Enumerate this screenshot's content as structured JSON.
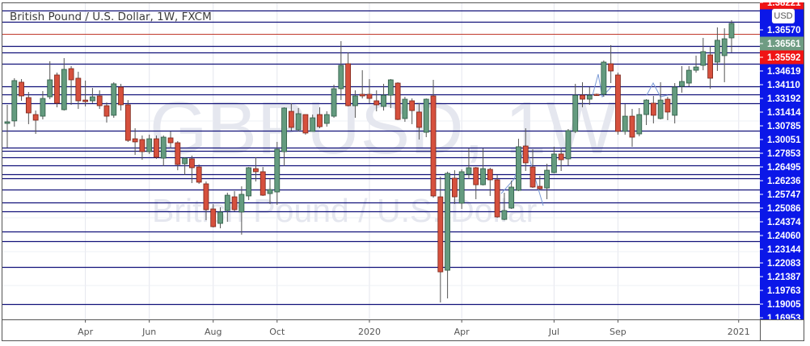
{
  "header": {
    "title": "British Pound / U.S. Dollar, 1W, FXCM",
    "currency_badge": "USD"
  },
  "watermark": {
    "symbol": "GBPUSD, 1W",
    "description": "British Pound / U.S. Dollar"
  },
  "colors": {
    "up": "#649b7f",
    "up_border": "#2e5b44",
    "down": "#d6503d",
    "down_border": "#7a2418",
    "level_line": "#12127a",
    "highlight_line": "#c0392b",
    "axis_bg": "#0b17e8",
    "label_red": "#f01414",
    "label_green": "#6f9c83",
    "grid": "#e4e6ee",
    "watermark": "#e5e7ef",
    "drawing": "#7a9ad6"
  },
  "chart_data": {
    "type": "candlestick",
    "title": "British Pound / U.S. Dollar, 1W, FXCM",
    "interval": "1W",
    "x_start": "2019-01-14",
    "ylim": [
      1.1396,
      1.3831
    ],
    "grid": true,
    "x_ticks": [
      {
        "label": "Apr",
        "date": "2019-04-01"
      },
      {
        "label": "Jun",
        "date": "2019-06-03"
      },
      {
        "label": "Aug",
        "date": "2019-08-05"
      },
      {
        "label": "Oct",
        "date": "2019-10-07"
      },
      {
        "label": "2020",
        "date": "2020-01-06"
      },
      {
        "label": "Apr",
        "date": "2020-04-06"
      },
      {
        "label": "Jul",
        "date": "2020-07-06"
      },
      {
        "label": "Sep",
        "date": "2020-09-07"
      },
      {
        "label": "2021",
        "date": "2021-01-04"
      }
    ],
    "price_labels": [
      {
        "value": "1.38221",
        "style": "red"
      },
      {
        "value": "1.36570",
        "style": "axis"
      },
      {
        "value": "1.36561",
        "style": "green"
      },
      {
        "value": "1.35592",
        "style": "red"
      },
      {
        "value": "1.34619",
        "style": "axis"
      },
      {
        "value": "1.34110",
        "style": "axis"
      },
      {
        "value": "1.33192",
        "style": "axis"
      },
      {
        "value": "1.31414",
        "style": "axis"
      },
      {
        "value": "1.30785",
        "style": "axis"
      },
      {
        "value": "1.30051",
        "style": "axis"
      },
      {
        "value": "1.27853",
        "style": "axis"
      },
      {
        "value": "1.26495",
        "style": "axis"
      },
      {
        "value": "1.26236",
        "style": "axis"
      },
      {
        "value": "1.25747",
        "style": "axis"
      },
      {
        "value": "1.25086",
        "style": "axis"
      },
      {
        "value": "1.24374",
        "style": "axis"
      },
      {
        "value": "1.24060",
        "style": "axis"
      },
      {
        "value": "1.23144",
        "style": "axis"
      },
      {
        "value": "1.22083",
        "style": "axis"
      },
      {
        "value": "1.21387",
        "style": "axis"
      },
      {
        "value": "1.19763",
        "style": "axis"
      },
      {
        "value": "1.19005",
        "style": "axis"
      },
      {
        "value": "1.16953",
        "style": "axis"
      }
    ],
    "levels": [
      1.3748,
      1.3657,
      1.35592,
      1.34619,
      1.3411,
      1.33192,
      1.31414,
      1.30785,
      1.30051,
      1.27853,
      1.26495,
      1.26236,
      1.25747,
      1.25086,
      1.24374,
      1.2406,
      1.23144,
      1.22083,
      1.21387,
      1.19763,
      1.19005,
      1.16953,
      1.1396
    ],
    "highlight_level": 1.35592,
    "ohlc": [
      [
        1.2843,
        1.2992,
        1.2649,
        1.2856
      ],
      [
        1.2863,
        1.3205,
        1.2817,
        1.3186
      ],
      [
        1.3173,
        1.3198,
        1.3024,
        1.3063
      ],
      [
        1.305,
        1.3095,
        1.2837,
        1.2927
      ],
      [
        1.2914,
        1.2946,
        1.2759,
        1.2869
      ],
      [
        1.2901,
        1.3102,
        1.2875,
        1.3043
      ],
      [
        1.3056,
        1.3341,
        1.3037,
        1.3192
      ],
      [
        1.3231,
        1.325,
        1.2972,
        1.3005
      ],
      [
        1.2953,
        1.3366,
        1.2946,
        1.3276
      ],
      [
        1.3282,
        1.3302,
        1.2992,
        1.3192
      ],
      [
        1.3205,
        1.3257,
        1.2959,
        1.3024
      ],
      [
        1.303,
        1.3186,
        1.2979,
        1.3018
      ],
      [
        1.3024,
        1.3127,
        1.3005,
        1.3056
      ],
      [
        1.3063,
        1.3108,
        1.2959,
        1.2985
      ],
      [
        1.2985,
        1.3011,
        1.285,
        1.2901
      ],
      [
        1.2908,
        1.3173,
        1.2888,
        1.316
      ],
      [
        1.3134,
        1.316,
        1.2946,
        1.2992
      ],
      [
        1.2992,
        1.303,
        1.2695,
        1.2707
      ],
      [
        1.272,
        1.2804,
        1.2591,
        1.2695
      ],
      [
        1.2714,
        1.2746,
        1.2552,
        1.2617
      ],
      [
        1.2617,
        1.2753,
        1.2598,
        1.272
      ],
      [
        1.272,
        1.2746,
        1.2559,
        1.2572
      ],
      [
        1.2565,
        1.2746,
        1.2501,
        1.2733
      ],
      [
        1.2727,
        1.2779,
        1.2643,
        1.2688
      ],
      [
        1.2688,
        1.2701,
        1.2468,
        1.2514
      ],
      [
        1.252,
        1.2572,
        1.243,
        1.2565
      ],
      [
        1.2559,
        1.2585,
        1.2365,
        1.2488
      ],
      [
        1.2494,
        1.2514,
        1.2359,
        1.2372
      ],
      [
        1.2359,
        1.2378,
        1.2068,
        1.2152
      ],
      [
        1.2158,
        1.2197,
        1.201,
        1.2016
      ],
      [
        1.2042,
        1.2171,
        1.2003,
        1.2133
      ],
      [
        1.2145,
        1.2288,
        1.2055,
        1.2268
      ],
      [
        1.2255,
        1.2301,
        1.2139,
        1.2152
      ],
      [
        1.2133,
        1.2339,
        1.1952,
        1.2275
      ],
      [
        1.2262,
        1.2494,
        1.2229,
        1.2488
      ],
      [
        1.2481,
        1.2572,
        1.2378,
        1.2456
      ],
      [
        1.2456,
        1.2494,
        1.2262,
        1.2268
      ],
      [
        1.2281,
        1.2397,
        1.2197,
        1.2313
      ],
      [
        1.2294,
        1.2695,
        1.2191,
        1.2636
      ],
      [
        1.2617,
        1.2972,
        1.2501,
        1.2966
      ],
      [
        1.294,
        1.3005,
        1.2785,
        1.2811
      ],
      [
        1.2792,
        1.2966,
        1.2779,
        1.2921
      ],
      [
        1.2914,
        1.2914,
        1.2753,
        1.2766
      ],
      [
        1.2779,
        1.2914,
        1.2779,
        1.2888
      ],
      [
        1.2914,
        1.2972,
        1.2804,
        1.2817
      ],
      [
        1.2843,
        1.294,
        1.2817,
        1.2914
      ],
      [
        1.2901,
        1.3153,
        1.2888,
        1.3121
      ],
      [
        1.3121,
        1.3502,
        1.303,
        1.3308
      ],
      [
        1.3321,
        1.3412,
        1.2979,
        1.2985
      ],
      [
        1.2985,
        1.3108,
        1.2888,
        1.3063
      ],
      [
        1.3076,
        1.3269,
        1.3043,
        1.3063
      ],
      [
        1.3076,
        1.3198,
        1.3005,
        1.3043
      ],
      [
        1.3024,
        1.3108,
        1.294,
        1.2992
      ],
      [
        1.2979,
        1.316,
        1.2946,
        1.3069
      ],
      [
        1.3069,
        1.3198,
        1.2966,
        1.3192
      ],
      [
        1.3166,
        1.3173,
        1.2869,
        1.2875
      ],
      [
        1.2882,
        1.3056,
        1.2856,
        1.3037
      ],
      [
        1.3024,
        1.3043,
        1.2837,
        1.2946
      ],
      [
        1.2934,
        1.3005,
        1.2714,
        1.2811
      ],
      [
        1.2772,
        1.3043,
        1.2733,
        1.3037
      ],
      [
        1.3063,
        1.3192,
        1.2249,
        1.2262
      ],
      [
        1.2255,
        1.2417,
        1.1409,
        1.1654
      ],
      [
        1.1667,
        1.2456,
        1.1441,
        1.2443
      ],
      [
        1.2404,
        1.2468,
        1.2197,
        1.2255
      ],
      [
        1.2204,
        1.2475,
        1.2158,
        1.2456
      ],
      [
        1.2436,
        1.2643,
        1.2397,
        1.2488
      ],
      [
        1.2488,
        1.2494,
        1.2236,
        1.2352
      ],
      [
        1.2352,
        1.2643,
        1.2346,
        1.2481
      ],
      [
        1.2475,
        1.2488,
        1.2262,
        1.2391
      ],
      [
        1.2391,
        1.243,
        1.2087,
        1.2094
      ],
      [
        1.2074,
        1.2288,
        1.2068,
        1.2145
      ],
      [
        1.2165,
        1.2385,
        1.2158,
        1.2333
      ],
      [
        1.2307,
        1.272,
        1.2301,
        1.2656
      ],
      [
        1.2662,
        1.2804,
        1.2462,
        1.2527
      ],
      [
        1.2494,
        1.2636,
        1.2326,
        1.2333
      ],
      [
        1.2339,
        1.2423,
        1.2307,
        1.232
      ],
      [
        1.2326,
        1.252,
        1.2236,
        1.2468
      ],
      [
        1.2449,
        1.2656,
        1.2443,
        1.2598
      ],
      [
        1.2598,
        1.2649,
        1.2462,
        1.2552
      ],
      [
        1.2559,
        1.2798,
        1.2507,
        1.2785
      ],
      [
        1.2779,
        1.316,
        1.2766,
        1.3069
      ],
      [
        1.3069,
        1.3173,
        1.2972,
        1.3037
      ],
      [
        1.3037,
        1.3134,
        1.2992,
        1.3069
      ],
      [
        1.3076,
        1.3082,
        1.3063,
        1.3069
      ],
      [
        1.3076,
        1.3347,
        1.3056,
        1.3334
      ],
      [
        1.3321,
        1.347,
        1.3166,
        1.3263
      ],
      [
        1.3231,
        1.325,
        1.2753,
        1.2779
      ],
      [
        1.2779,
        1.2998,
        1.2753,
        1.2901
      ],
      [
        1.2901,
        1.2959,
        1.2656,
        1.2733
      ],
      [
        1.2759,
        1.2966,
        1.274,
        1.2914
      ],
      [
        1.2914,
        1.3037,
        1.283,
        1.303
      ],
      [
        1.3005,
        1.3063,
        1.2843,
        1.2908
      ],
      [
        1.2882,
        1.3173,
        1.2875,
        1.303
      ],
      [
        1.3037,
        1.3056,
        1.2869,
        1.2934
      ],
      [
        1.2908,
        1.3166,
        1.2843,
        1.3134
      ],
      [
        1.314,
        1.3302,
        1.3089,
        1.3179
      ],
      [
        1.3166,
        1.3302,
        1.314,
        1.3269
      ],
      [
        1.3269,
        1.3386,
        1.325,
        1.3295
      ],
      [
        1.3308,
        1.3528,
        1.3269,
        1.3418
      ],
      [
        1.3392,
        1.3463,
        1.3121,
        1.3205
      ],
      [
        1.3334,
        1.3612,
        1.3263,
        1.3509
      ],
      [
        1.3386,
        1.3605,
        1.3173,
        1.3521
      ],
      [
        1.3528,
        1.367,
        1.3412,
        1.3644
      ]
    ]
  }
}
